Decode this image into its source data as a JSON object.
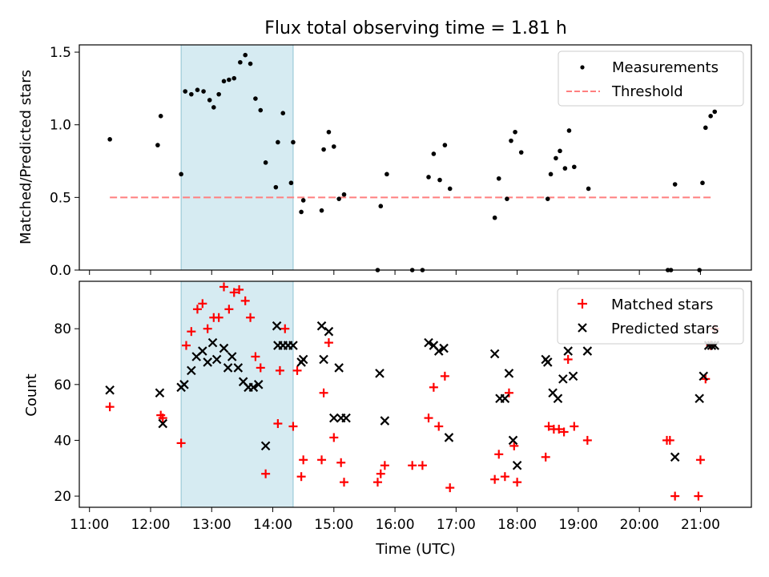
{
  "title": "Flux total observing time = 1.81 h",
  "colors": {
    "measurement": "#000000",
    "threshold": "#ff7f7f",
    "matched": "#ff0000",
    "predicted": "#000000",
    "highlight": "#add8e6"
  },
  "chart_data": [
    {
      "type": "scatter",
      "ylabel": "Matched/Predicted stars",
      "ylim": [
        0,
        1.55
      ],
      "yticks": [
        0.0,
        0.5,
        1.0,
        1.5
      ],
      "ytick_labels": [
        "0.0",
        "0.5",
        "1.0",
        "1.5"
      ],
      "legend": {
        "placement": "upper right",
        "entries": [
          "Measurements",
          "Threshold"
        ]
      },
      "highlight_span": [
        "12:30",
        "14:20"
      ],
      "threshold": {
        "value": 0.5,
        "from": "11:20",
        "to": "21:10"
      },
      "series": [
        {
          "name": "Measurements",
          "marker": "dot",
          "points": [
            [
              "11:20",
              0.9
            ],
            [
              "12:07",
              0.86
            ],
            [
              "12:10",
              1.06
            ],
            [
              "12:30",
              0.66
            ],
            [
              "12:34",
              1.23
            ],
            [
              "12:40",
              1.21
            ],
            [
              "12:46",
              1.24
            ],
            [
              "12:52",
              1.23
            ],
            [
              "12:58",
              1.17
            ],
            [
              "13:02",
              1.12
            ],
            [
              "13:07",
              1.21
            ],
            [
              "13:12",
              1.3
            ],
            [
              "13:17",
              1.31
            ],
            [
              "13:22",
              1.32
            ],
            [
              "13:28",
              1.43
            ],
            [
              "13:33",
              1.48
            ],
            [
              "13:38",
              1.42
            ],
            [
              "13:43",
              1.18
            ],
            [
              "13:48",
              1.1
            ],
            [
              "13:53",
              0.74
            ],
            [
              "14:03",
              0.57
            ],
            [
              "14:05",
              0.88
            ],
            [
              "14:10",
              1.08
            ],
            [
              "14:18",
              0.6
            ],
            [
              "14:20",
              0.88
            ],
            [
              "14:28",
              0.4
            ],
            [
              "14:30",
              0.48
            ],
            [
              "14:48",
              0.41
            ],
            [
              "14:50",
              0.83
            ],
            [
              "14:55",
              0.95
            ],
            [
              "15:00",
              0.85
            ],
            [
              "15:05",
              0.49
            ],
            [
              "15:10",
              0.52
            ],
            [
              "15:43",
              0.0
            ],
            [
              "15:46",
              0.44
            ],
            [
              "15:52",
              0.66
            ],
            [
              "16:17",
              0.0
            ],
            [
              "16:27",
              0.0
            ],
            [
              "16:33",
              0.64
            ],
            [
              "16:38",
              0.8
            ],
            [
              "16:44",
              0.62
            ],
            [
              "16:49",
              0.86
            ],
            [
              "16:54",
              0.56
            ],
            [
              "17:38",
              0.36
            ],
            [
              "17:42",
              0.63
            ],
            [
              "17:50",
              0.49
            ],
            [
              "17:54",
              0.89
            ],
            [
              "17:58",
              0.95
            ],
            [
              "18:04",
              0.81
            ],
            [
              "18:30",
              0.49
            ],
            [
              "18:33",
              0.66
            ],
            [
              "18:38",
              0.77
            ],
            [
              "18:42",
              0.82
            ],
            [
              "18:47",
              0.7
            ],
            [
              "18:51",
              0.96
            ],
            [
              "18:56",
              0.71
            ],
            [
              "19:10",
              0.56
            ],
            [
              "20:28",
              0.0
            ],
            [
              "20:31",
              0.0
            ],
            [
              "20:35",
              0.59
            ],
            [
              "20:59",
              0.0
            ],
            [
              "21:02",
              0.6
            ],
            [
              "21:05",
              0.98
            ],
            [
              "21:10",
              1.06
            ],
            [
              "21:14",
              1.09
            ]
          ]
        },
        {
          "name": "Threshold",
          "marker": "dashed-line"
        }
      ]
    },
    {
      "type": "scatter",
      "xlabel": "Time (UTC)",
      "ylabel": "Count",
      "ylim": [
        16,
        97
      ],
      "yticks": [
        20,
        40,
        60,
        80
      ],
      "ytick_labels": [
        "20",
        "40",
        "60",
        "80"
      ],
      "xlim": [
        "10:50",
        "21:50"
      ],
      "xticks": [
        "11:00",
        "12:00",
        "13:00",
        "14:00",
        "15:00",
        "16:00",
        "17:00",
        "18:00",
        "19:00",
        "20:00",
        "21:00"
      ],
      "legend": {
        "placement": "upper right",
        "entries": [
          "Matched stars",
          "Predicted stars"
        ]
      },
      "highlight_span": [
        "12:30",
        "14:20"
      ],
      "series": [
        {
          "name": "Matched stars",
          "marker": "plus",
          "points": [
            [
              "11:20",
              52
            ],
            [
              "12:10",
              49
            ],
            [
              "12:12",
              48
            ],
            [
              "12:30",
              39
            ],
            [
              "12:35",
              74
            ],
            [
              "12:40",
              79
            ],
            [
              "12:46",
              87
            ],
            [
              "12:51",
              89
            ],
            [
              "12:56",
              80
            ],
            [
              "13:02",
              84
            ],
            [
              "13:07",
              84
            ],
            [
              "13:12",
              95
            ],
            [
              "13:17",
              87
            ],
            [
              "13:22",
              93
            ],
            [
              "13:27",
              94
            ],
            [
              "13:33",
              90
            ],
            [
              "13:38",
              84
            ],
            [
              "13:43",
              70
            ],
            [
              "13:48",
              66
            ],
            [
              "13:53",
              28
            ],
            [
              "14:05",
              46
            ],
            [
              "14:07",
              65
            ],
            [
              "14:12",
              80
            ],
            [
              "14:20",
              45
            ],
            [
              "14:24",
              65
            ],
            [
              "14:28",
              27
            ],
            [
              "14:30",
              33
            ],
            [
              "14:48",
              33
            ],
            [
              "14:50",
              57
            ],
            [
              "14:55",
              75
            ],
            [
              "15:00",
              41
            ],
            [
              "15:07",
              32
            ],
            [
              "15:10",
              25
            ],
            [
              "15:43",
              25
            ],
            [
              "15:46",
              28
            ],
            [
              "15:50",
              31
            ],
            [
              "16:17",
              31
            ],
            [
              "16:27",
              31
            ],
            [
              "16:33",
              48
            ],
            [
              "16:38",
              59
            ],
            [
              "16:43",
              45
            ],
            [
              "16:49",
              63
            ],
            [
              "16:54",
              23
            ],
            [
              "17:38",
              26
            ],
            [
              "17:42",
              35
            ],
            [
              "17:48",
              27
            ],
            [
              "17:52",
              57
            ],
            [
              "17:57",
              38
            ],
            [
              "18:00",
              25
            ],
            [
              "18:28",
              34
            ],
            [
              "18:31",
              45
            ],
            [
              "18:36",
              44
            ],
            [
              "18:41",
              44
            ],
            [
              "18:46",
              43
            ],
            [
              "18:50",
              69
            ],
            [
              "18:56",
              45
            ],
            [
              "19:09",
              40
            ],
            [
              "20:27",
              40
            ],
            [
              "20:30",
              40
            ],
            [
              "20:35",
              20
            ],
            [
              "20:58",
              20
            ],
            [
              "21:00",
              33
            ],
            [
              "21:05",
              62
            ],
            [
              "21:10",
              74
            ],
            [
              "21:14",
              80
            ]
          ]
        },
        {
          "name": "Predicted stars",
          "marker": "x",
          "points": [
            [
              "11:20",
              58
            ],
            [
              "12:09",
              57
            ],
            [
              "12:12",
              46
            ],
            [
              "12:30",
              59
            ],
            [
              "12:33",
              60
            ],
            [
              "12:40",
              65
            ],
            [
              "12:45",
              70
            ],
            [
              "12:51",
              72
            ],
            [
              "12:56",
              68
            ],
            [
              "13:01",
              75
            ],
            [
              "13:05",
              69
            ],
            [
              "13:12",
              73
            ],
            [
              "13:16",
              66
            ],
            [
              "13:20",
              70
            ],
            [
              "13:26",
              66
            ],
            [
              "13:31",
              61
            ],
            [
              "13:36",
              59
            ],
            [
              "13:41",
              59
            ],
            [
              "13:46",
              60
            ],
            [
              "13:53",
              38
            ],
            [
              "14:04",
              81
            ],
            [
              "14:05",
              74
            ],
            [
              "14:10",
              74
            ],
            [
              "14:15",
              74
            ],
            [
              "14:20",
              74
            ],
            [
              "14:28",
              68
            ],
            [
              "14:30",
              69
            ],
            [
              "14:48",
              81
            ],
            [
              "14:50",
              69
            ],
            [
              "14:55",
              79
            ],
            [
              "15:00",
              48
            ],
            [
              "15:05",
              66
            ],
            [
              "15:07",
              48
            ],
            [
              "15:12",
              48
            ],
            [
              "15:45",
              64
            ],
            [
              "15:50",
              47
            ],
            [
              "16:33",
              75
            ],
            [
              "16:38",
              74
            ],
            [
              "16:43",
              72
            ],
            [
              "16:48",
              73
            ],
            [
              "16:53",
              41
            ],
            [
              "17:38",
              71
            ],
            [
              "17:43",
              55
            ],
            [
              "17:48",
              55
            ],
            [
              "17:52",
              64
            ],
            [
              "17:56",
              40
            ],
            [
              "18:00",
              31
            ],
            [
              "18:28",
              69
            ],
            [
              "18:30",
              68
            ],
            [
              "18:35",
              57
            ],
            [
              "18:40",
              55
            ],
            [
              "18:45",
              62
            ],
            [
              "18:50",
              72
            ],
            [
              "18:55",
              63
            ],
            [
              "19:09",
              72
            ],
            [
              "20:35",
              34
            ],
            [
              "20:59",
              55
            ],
            [
              "21:03",
              63
            ],
            [
              "21:08",
              74
            ],
            [
              "21:11",
              74
            ],
            [
              "21:14",
              74
            ]
          ]
        }
      ]
    }
  ]
}
